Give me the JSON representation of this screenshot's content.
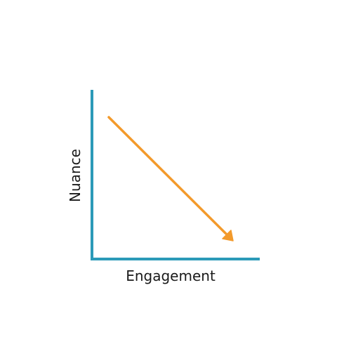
{
  "diagram": {
    "x_axis_label": "Engagement",
    "y_axis_label": "Nuance",
    "colors": {
      "axis": "#2b9ab8",
      "arrow": "#f39a2b",
      "text": "#1a1a1a",
      "background": "#ffffff"
    },
    "trend": "decreasing"
  }
}
